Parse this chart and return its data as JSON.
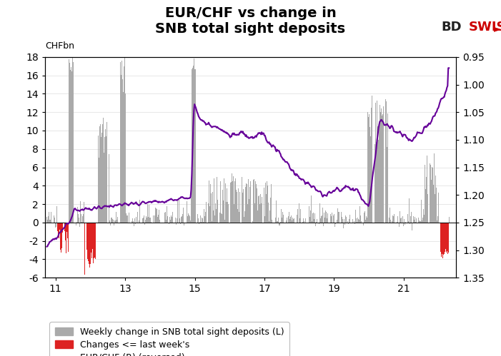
{
  "title_line1": "EUR/CHF vs change in",
  "title_line2": "SNB total sight deposits",
  "ylabel_left": "CHFbn",
  "x_ticks": [
    11,
    13,
    15,
    17,
    19,
    21
  ],
  "xlim": [
    10.7,
    22.5
  ],
  "ylim_left": [
    -6,
    18
  ],
  "ylim_right": [
    0.95,
    1.35
  ],
  "yticks_left": [
    -6,
    -4,
    -2,
    0,
    2,
    4,
    6,
    8,
    10,
    12,
    14,
    16,
    18
  ],
  "yticks_right": [
    0.95,
    1.0,
    1.05,
    1.1,
    1.15,
    1.2,
    1.25,
    1.3,
    1.35
  ],
  "bar_color": "#aaaaaa",
  "red_color": "#dd2222",
  "line_color": "#660099",
  "legend_labels": [
    "Weekly change in SNB total sight deposits (L)",
    "Changes <= last week's",
    "EUR/CHF (R) (reversed)"
  ],
  "bdswiss_color_bd": "#222222",
  "bdswiss_color_swiss": "#cc0000",
  "background_color": "#ffffff",
  "grid_color": "#dddddd",
  "title_fontsize": 14,
  "axis_fontsize": 10
}
